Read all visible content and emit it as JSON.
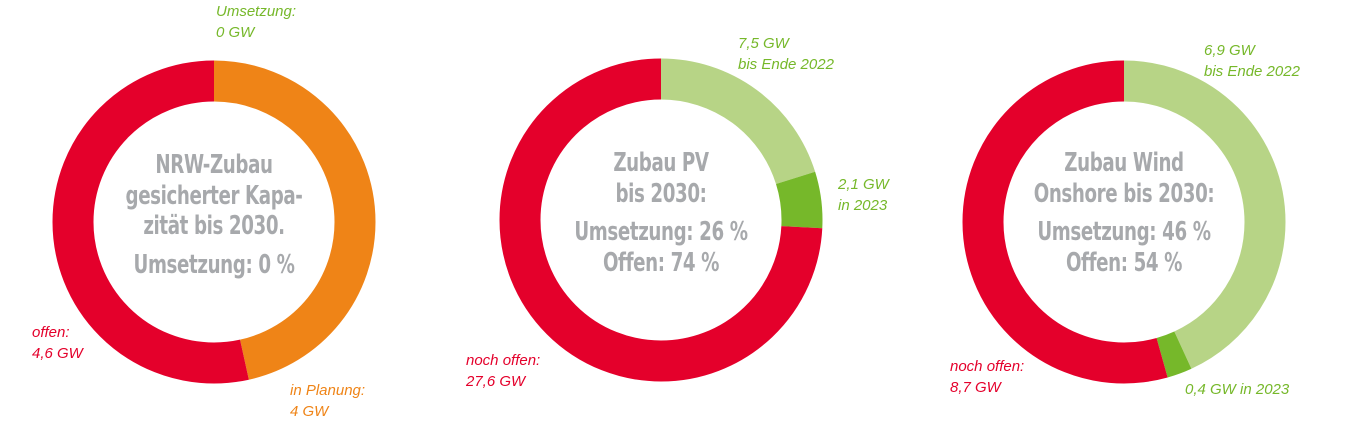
{
  "colors": {
    "red": "#e4002b",
    "orange": "#ef8417",
    "light_green": "#b7d486",
    "dark_green": "#76b82a",
    "center_text": "#a7a9ac"
  },
  "charts": [
    {
      "title_lines": [
        "NRW-Zubau",
        "gesicherter Kapa-",
        "zität bis 2030."
      ],
      "stat_lines": [
        "Umsetzung: 0 %"
      ],
      "labels": [
        {
          "lines": [
            "Umsetzung:",
            "0 GW"
          ],
          "color": "#76b82a"
        },
        {
          "lines": [
            "in Planung:",
            "4 GW"
          ],
          "color": "#ef8417"
        },
        {
          "lines": [
            "offen:",
            "4,6 GW"
          ],
          "color": "#e4002b"
        }
      ]
    },
    {
      "title_lines": [
        "Zubau PV",
        "bis 2030:"
      ],
      "stat_lines": [
        "Umsetzung: 26 %",
        "Offen: 74 %"
      ],
      "labels": [
        {
          "lines": [
            "7,5 GW",
            "bis Ende 2022"
          ],
          "color": "#76b82a"
        },
        {
          "lines": [
            "2,1 GW",
            "in 2023"
          ],
          "color": "#76b82a"
        },
        {
          "lines": [
            "noch offen:",
            "27,6 GW"
          ],
          "color": "#e4002b"
        }
      ]
    },
    {
      "title_lines": [
        "Zubau Wind",
        "Onshore bis 2030:"
      ],
      "stat_lines": [
        "Umsetzung: 46 %",
        "Offen: 54 %"
      ],
      "labels": [
        {
          "lines": [
            "6,9 GW",
            "bis Ende 2022"
          ],
          "color": "#76b82a"
        },
        {
          "lines": [
            "0,4 GW in 2023"
          ],
          "color": "#76b82a"
        },
        {
          "lines": [
            "noch offen:",
            "8,7 GW"
          ],
          "color": "#e4002b"
        }
      ]
    }
  ],
  "chart_data": [
    {
      "type": "pie",
      "variant": "donut",
      "title": "NRW-Zubau gesicherter Kapazität bis 2030. Umsetzung: 0 %",
      "unit": "GW",
      "categories": [
        "Umsetzung",
        "in Planung",
        "offen"
      ],
      "values": [
        0,
        4,
        4.6
      ],
      "colors": [
        "#76b82a",
        "#ef8417",
        "#e4002b"
      ],
      "start_angle": "top, clockwise"
    },
    {
      "type": "pie",
      "variant": "donut",
      "title": "Zubau PV bis 2030: Umsetzung: 26 % Offen: 74 %",
      "unit": "GW",
      "categories": [
        "bis Ende 2022",
        "in 2023",
        "noch offen"
      ],
      "values": [
        7.5,
        2.1,
        27.6
      ],
      "colors": [
        "#b7d486",
        "#76b82a",
        "#e4002b"
      ],
      "start_angle": "top, clockwise"
    },
    {
      "type": "pie",
      "variant": "donut",
      "title": "Zubau Wind Onshore bis 2030: Umsetzung: 46 % Offen: 54 %",
      "unit": "GW",
      "categories": [
        "bis Ende 2022",
        "in 2023",
        "noch offen"
      ],
      "values": [
        6.9,
        0.4,
        8.7
      ],
      "colors": [
        "#b7d486",
        "#76b82a",
        "#e4002b"
      ],
      "start_angle": "top, clockwise"
    }
  ]
}
